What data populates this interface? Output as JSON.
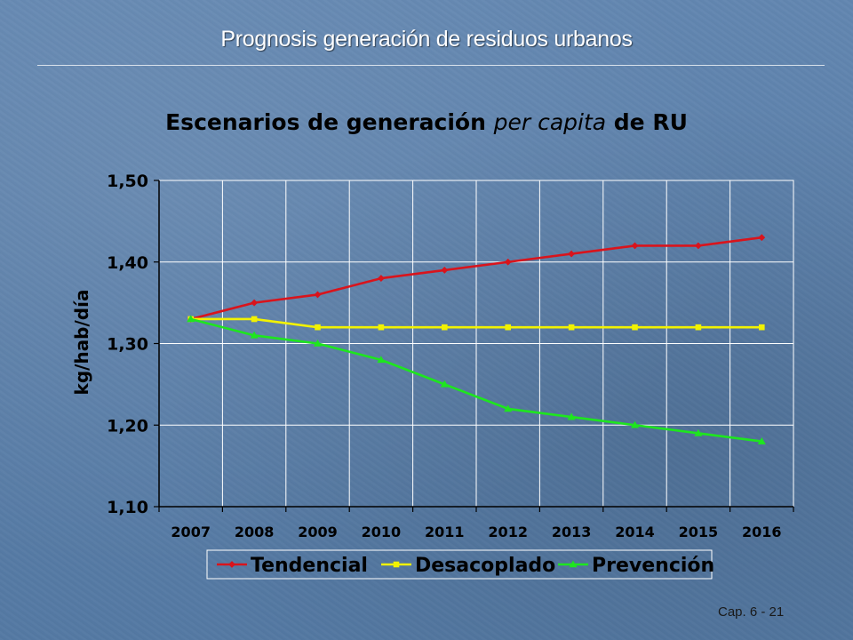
{
  "slide": {
    "title": "Prognosis generación de residuos urbanos",
    "number": "Cap. 6 - 21"
  },
  "chart_data": {
    "type": "line",
    "title_parts": [
      {
        "text": "Escenarios de generación ",
        "style": "bold"
      },
      {
        "text": "per capita",
        "style": "italic"
      },
      {
        "text": " de RU",
        "style": "bold"
      }
    ],
    "xlabel": "",
    "ylabel": "kg/hab/día",
    "categories": [
      "2007",
      "2008",
      "2009",
      "2010",
      "2011",
      "2012",
      "2013",
      "2014",
      "2015",
      "2016"
    ],
    "ylim": [
      1.1,
      1.5
    ],
    "yticks": [
      1.1,
      1.2,
      1.3,
      1.4,
      1.5
    ],
    "ytick_labels": [
      "1,10",
      "1,20",
      "1,30",
      "1,40",
      "1,50"
    ],
    "grid": true,
    "legend_placement": "bottom",
    "series": [
      {
        "name": "Tendencial",
        "color": "#d9141c",
        "marker": "diamond",
        "values": [
          1.33,
          1.35,
          1.36,
          1.38,
          1.39,
          1.4,
          1.41,
          1.42,
          1.42,
          1.43
        ]
      },
      {
        "name": "Desacoplado",
        "color": "#f2f200",
        "marker": "square",
        "values": [
          1.33,
          1.33,
          1.32,
          1.32,
          1.32,
          1.32,
          1.32,
          1.32,
          1.32,
          1.32
        ]
      },
      {
        "name": "Prevención",
        "color": "#1ee61e",
        "marker": "triangle",
        "values": [
          1.33,
          1.31,
          1.3,
          1.28,
          1.25,
          1.22,
          1.21,
          1.2,
          1.19,
          1.18
        ]
      }
    ]
  }
}
